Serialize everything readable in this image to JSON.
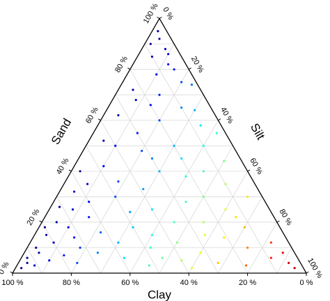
{
  "chart_data": {
    "type": "ternary",
    "colormap": "jet",
    "color_by": "silt",
    "axes": {
      "sand": {
        "title": "Sand",
        "ticks": [
          {
            "value": 0,
            "label": "0 %"
          },
          {
            "value": 20,
            "label": "20 %"
          },
          {
            "value": 40,
            "label": "40 %"
          },
          {
            "value": 60,
            "label": "60 %"
          },
          {
            "value": 80,
            "label": "80 %"
          },
          {
            "value": 100,
            "label": "100 %"
          }
        ]
      },
      "silt": {
        "title": "Silt",
        "ticks": [
          {
            "value": 0,
            "label": "0 %"
          },
          {
            "value": 20,
            "label": "20 %"
          },
          {
            "value": 40,
            "label": "40 %"
          },
          {
            "value": 60,
            "label": "60 %"
          },
          {
            "value": 80,
            "label": "80 %"
          },
          {
            "value": 100,
            "label": "100 %"
          }
        ]
      },
      "clay": {
        "title": "Clay",
        "ticks": [
          {
            "value": 0,
            "label": "0 %"
          },
          {
            "value": 20,
            "label": "20 %"
          },
          {
            "value": 40,
            "label": "40 %"
          },
          {
            "value": 60,
            "label": "60 %"
          },
          {
            "value": 80,
            "label": "80 %"
          },
          {
            "value": 100,
            "label": "100 %"
          }
        ]
      }
    },
    "grid_levels": [
      10,
      20,
      30,
      40,
      50,
      60,
      70,
      80,
      90
    ],
    "points": {
      "sand": [
        2,
        4,
        6,
        3,
        8,
        10,
        5,
        12,
        7,
        15,
        18,
        10,
        20,
        4,
        14,
        22,
        25,
        8,
        16,
        28,
        12,
        30,
        18,
        35,
        6,
        3,
        10,
        5,
        8,
        4,
        12,
        20,
        25,
        15,
        3,
        6,
        10,
        18,
        4,
        8,
        2,
        12,
        25,
        30,
        22,
        35,
        40,
        45,
        50,
        40,
        48,
        55,
        42,
        60,
        65,
        58,
        70,
        68,
        75,
        78,
        72,
        80,
        85,
        82,
        88,
        92,
        95,
        90,
        62,
        52,
        45,
        38,
        33,
        28,
        20,
        15,
        36,
        50,
        55,
        30,
        44,
        2,
        14,
        6,
        24,
        32,
        40,
        26,
        18,
        50,
        66,
        74,
        86,
        64
      ],
      "silt": [
        2,
        3,
        2,
        6,
        5,
        3,
        10,
        8,
        14,
        4,
        10,
        18,
        5,
        20,
        14,
        15,
        8,
        25,
        22,
        12,
        30,
        20,
        32,
        8,
        35,
        45,
        42,
        55,
        60,
        68,
        50,
        45,
        35,
        58,
        78,
        85,
        75,
        70,
        92,
        88,
        95,
        82,
        60,
        50,
        65,
        55,
        45,
        35,
        30,
        30,
        20,
        15,
        10,
        20,
        25,
        35,
        15,
        8,
        20,
        10,
        5,
        15,
        5,
        12,
        8,
        4,
        2,
        2,
        5,
        5,
        25,
        40,
        28,
        45,
        55,
        40,
        18,
        40,
        42,
        65,
        50,
        60,
        65,
        48,
        28,
        5,
        3,
        3,
        2,
        10,
        14,
        24,
        10,
        30
      ],
      "clay": [
        96,
        93,
        92,
        91,
        87,
        87,
        85,
        80,
        79,
        81,
        72,
        72,
        75,
        76,
        72,
        63,
        67,
        67,
        62,
        60,
        58,
        50,
        50,
        57,
        59,
        52,
        48,
        40,
        32,
        28,
        38,
        35,
        40,
        27,
        19,
        9,
        15,
        12,
        4,
        4,
        3,
        6,
        15,
        20,
        13,
        10,
        15,
        20,
        20,
        30,
        32,
        30,
        48,
        20,
        10,
        7,
        15,
        24,
        5,
        12,
        23,
        5,
        10,
        6,
        4,
        4,
        3,
        8,
        33,
        43,
        30,
        22,
        39,
        27,
        25,
        45,
        46,
        10,
        3,
        5,
        6,
        38,
        21,
        46,
        48,
        63,
        57,
        71,
        80,
        40,
        20,
        2,
        4,
        6
      ]
    }
  }
}
